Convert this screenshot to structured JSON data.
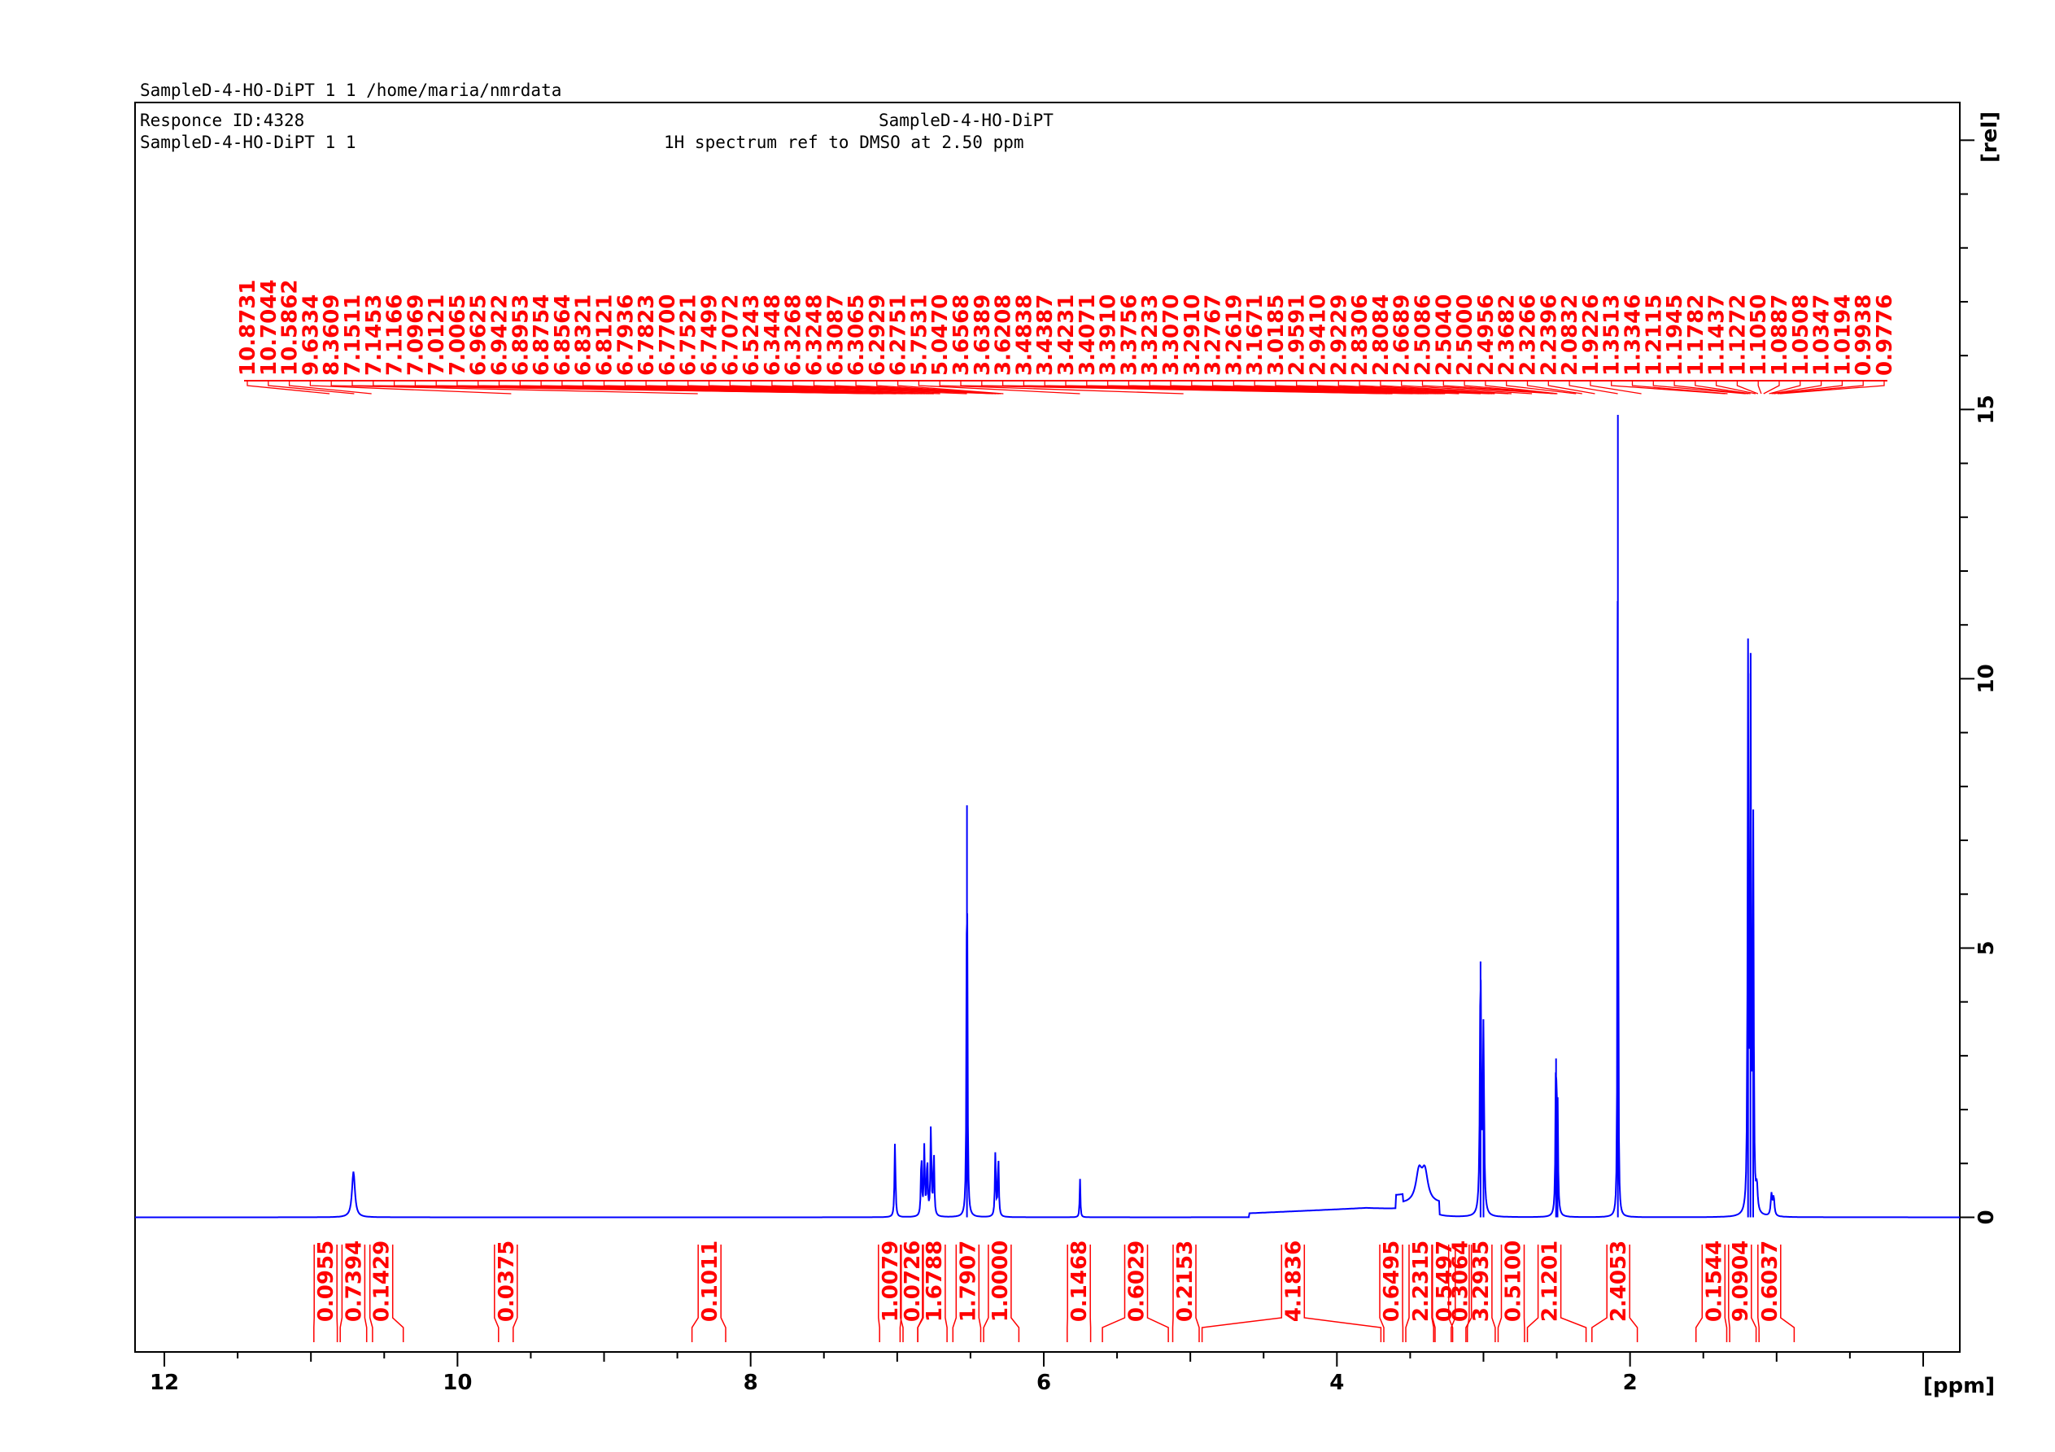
{
  "header": {
    "line1": "SampleD-4-HO-DiPT  1  1  /home/maria/nmrdata",
    "line2_left": "Responce ID:4328",
    "line2_right": "SampleD-4-HO-DiPT",
    "line3_left": "SampleD-4-HO-DiPT 1 1",
    "line3_right": "1H spectrum ref to DMSO at 2.50 ppm"
  },
  "colors": {
    "spectrum": "#0000ff",
    "annotation": "#ff0000",
    "axis": "#000000",
    "background": "#ffffff"
  },
  "chart_data": {
    "type": "line",
    "title": "1H spectrum ref to DMSO at 2.50 ppm",
    "xlabel": "[ppm]",
    "ylabel": "[rel]",
    "xlim": [
      12.2,
      -0.25
    ],
    "ylim": [
      -2.5,
      20.7
    ],
    "x_reversed": true,
    "grid": false,
    "x_ticks": [
      "12",
      "10",
      "8",
      "6",
      "4",
      "2"
    ],
    "y_ticks": [
      "0",
      "5",
      "10",
      "15"
    ],
    "peak_labels": [
      "10.8731",
      "10.7044",
      "10.5862",
      "9.6334",
      "8.3609",
      "7.1511",
      "7.1453",
      "7.1166",
      "7.0969",
      "7.0121",
      "7.0065",
      "6.9625",
      "6.9422",
      "6.8953",
      "6.8754",
      "6.8564",
      "6.8321",
      "6.8121",
      "6.7936",
      "6.7823",
      "6.7700",
      "6.7521",
      "6.7499",
      "6.7072",
      "6.5243",
      "6.3448",
      "6.3268",
      "6.3248",
      "6.3087",
      "6.3065",
      "6.2929",
      "6.2751",
      "5.7531",
      "5.0470",
      "3.6568",
      "3.6389",
      "3.6208",
      "3.4838",
      "3.4387",
      "3.4231",
      "3.4071",
      "3.3910",
      "3.3756",
      "3.3233",
      "3.3070",
      "3.2910",
      "3.2767",
      "3.2619",
      "3.1671",
      "3.0185",
      "2.9591",
      "2.9410",
      "2.9229",
      "2.8306",
      "2.8084",
      "2.6689",
      "2.5086",
      "2.5040",
      "2.5000",
      "2.4956",
      "2.3682",
      "2.3266",
      "2.2396",
      "2.0832",
      "1.9226",
      "1.3513",
      "1.3346",
      "1.2115",
      "1.1945",
      "1.1782",
      "1.1437",
      "1.1272",
      "1.1050",
      "1.0887",
      "1.0508",
      "1.0347",
      "1.0194",
      "0.9938",
      "0.9776"
    ],
    "integrals": [
      {
        "value": "0.0955",
        "from": 10.98,
        "to": 10.82,
        "label_x": 10.9
      },
      {
        "value": "0.7394",
        "from": 10.8,
        "to": 10.62,
        "label_x": 10.71
      },
      {
        "value": "0.1429",
        "from": 10.58,
        "to": 10.37,
        "label_x": 10.52
      },
      {
        "value": "0.0375",
        "from": 9.72,
        "to": 9.62,
        "label_x": 9.67
      },
      {
        "value": "0.1011",
        "from": 8.4,
        "to": 8.17,
        "label_x": 8.28
      },
      {
        "value": "1.0079",
        "from": 7.12,
        "to": 6.98,
        "label_x": 7.05
      },
      {
        "value": "0.0726",
        "from": 6.96,
        "to": 6.86,
        "label_x": 6.9
      },
      {
        "value": "1.6788",
        "from": 6.86,
        "to": 6.66,
        "label_x": 6.75
      },
      {
        "value": "1.7907",
        "from": 6.62,
        "to": 6.43,
        "label_x": 6.52
      },
      {
        "value": "1.0000",
        "from": 6.41,
        "to": 6.17,
        "label_x": 6.3
      },
      {
        "value": "0.1468",
        "from": 5.84,
        "to": 5.68,
        "label_x": 5.76
      },
      {
        "value": "0.6029",
        "from": 5.6,
        "to": 5.15,
        "label_x": 5.37
      },
      {
        "value": "0.2153",
        "from": 5.12,
        "to": 4.94,
        "label_x": 5.04
      },
      {
        "value": "4.1836",
        "from": 4.92,
        "to": 3.7,
        "label_x": 4.3
      },
      {
        "value": "0.6495",
        "from": 3.68,
        "to": 3.55,
        "label_x": 3.63
      },
      {
        "value": "2.2315",
        "from": 3.53,
        "to": 3.34,
        "label_x": 3.43
      },
      {
        "value": "0.5497",
        "from": 3.33,
        "to": 3.22,
        "label_x": 3.27
      },
      {
        "value": "0.3064",
        "from": 3.21,
        "to": 3.12,
        "label_x": 3.16
      },
      {
        "value": "3.2935",
        "from": 3.11,
        "to": 2.92,
        "label_x": 3.02
      },
      {
        "value": "0.5100",
        "from": 2.9,
        "to": 2.72,
        "label_x": 2.8
      },
      {
        "value": "2.1201",
        "from": 2.7,
        "to": 2.3,
        "label_x": 2.55
      },
      {
        "value": "2.4053",
        "from": 2.26,
        "to": 1.95,
        "label_x": 2.08
      },
      {
        "value": "0.1544",
        "from": 1.55,
        "to": 1.34,
        "label_x": 1.43
      },
      {
        "value": "9.0904",
        "from": 1.32,
        "to": 1.14,
        "label_x": 1.25
      },
      {
        "value": "0.6037",
        "from": 1.12,
        "to": 0.88,
        "label_x": 1.05
      }
    ],
    "peaks": [
      {
        "ppm": 10.71,
        "height": 0.85,
        "width": 0.012
      },
      {
        "ppm": 7.015,
        "height": 1.38,
        "width": 0.004
      },
      {
        "ppm": 6.835,
        "height": 1.18,
        "width": 0.004
      },
      {
        "ppm": 6.815,
        "height": 1.28,
        "width": 0.004
      },
      {
        "ppm": 6.795,
        "height": 1.1,
        "width": 0.004
      },
      {
        "ppm": 6.77,
        "height": 1.68,
        "width": 0.004
      },
      {
        "ppm": 6.75,
        "height": 1.2,
        "width": 0.004
      },
      {
        "ppm": 6.524,
        "height": 7.65,
        "width": 0.0035
      },
      {
        "ppm": 6.33,
        "height": 1.2,
        "width": 0.004
      },
      {
        "ppm": 6.31,
        "height": 1.15,
        "width": 0.004
      },
      {
        "ppm": 5.753,
        "height": 0.72,
        "width": 0.003
      },
      {
        "ppm": 3.44,
        "height": 0.55,
        "width": 0.025
      },
      {
        "ppm": 3.4,
        "height": 0.55,
        "width": 0.025
      },
      {
        "ppm": 3.02,
        "height": 4.75,
        "width": 0.005
      },
      {
        "ppm": 3.0,
        "height": 3.4,
        "width": 0.005
      },
      {
        "ppm": 2.505,
        "height": 2.95,
        "width": 0.004
      },
      {
        "ppm": 2.495,
        "height": 2.2,
        "width": 0.004
      },
      {
        "ppm": 2.083,
        "height": 14.9,
        "width": 0.0025
      },
      {
        "ppm": 1.195,
        "height": 10.25,
        "width": 0.0035
      },
      {
        "ppm": 1.178,
        "height": 10.1,
        "width": 0.0035
      },
      {
        "ppm": 1.16,
        "height": 7.2,
        "width": 0.004
      },
      {
        "ppm": 1.135,
        "height": 0.45,
        "width": 0.006
      },
      {
        "ppm": 1.035,
        "height": 0.4,
        "width": 0.006
      },
      {
        "ppm": 1.02,
        "height": 0.35,
        "width": 0.006
      }
    ]
  }
}
